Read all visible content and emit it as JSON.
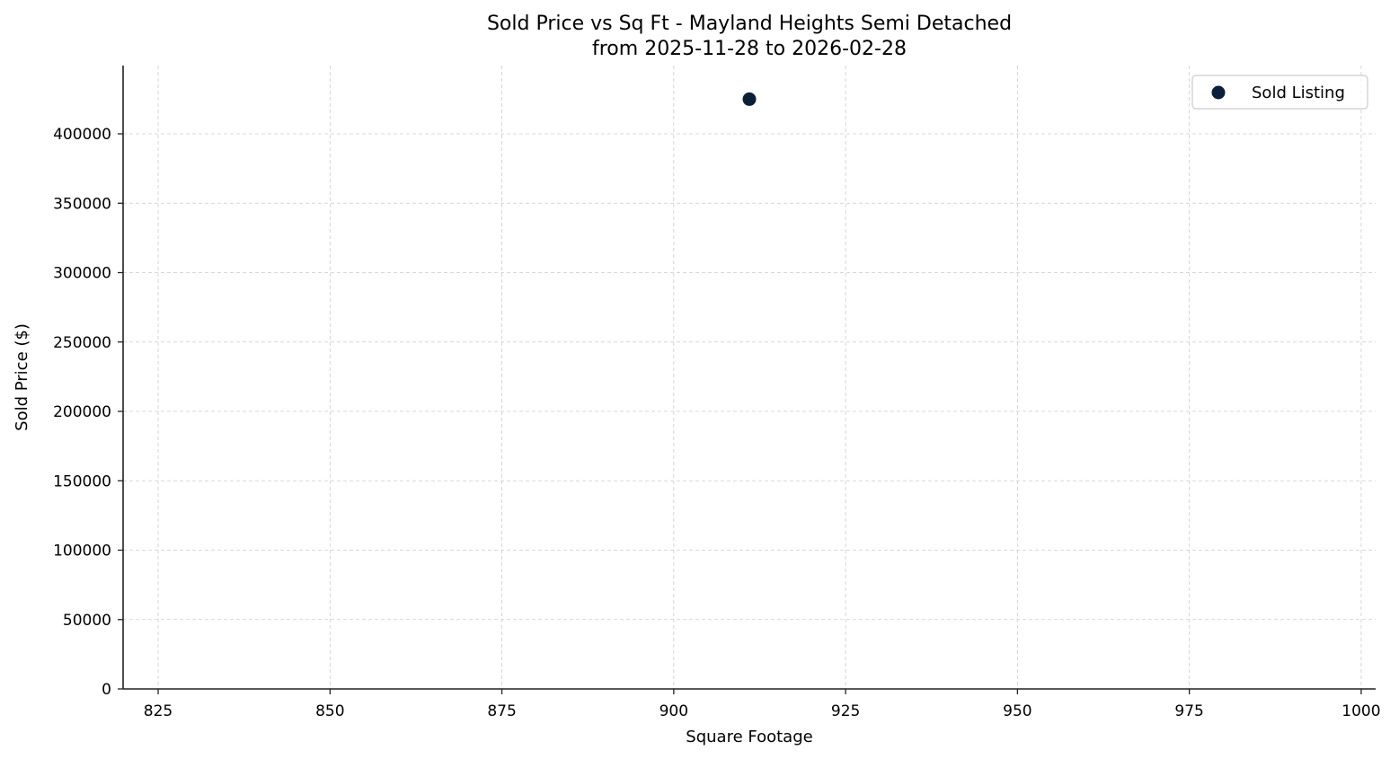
{
  "chart_data": {
    "type": "scatter",
    "title": "Sold Price vs Sq Ft - Mayland Heights Semi Detached",
    "subtitle": "from 2025-11-28 to 2026-02-28",
    "xlabel": "Square Footage",
    "ylabel": "Sold Price ($)",
    "xlim": [
      819.9,
      1002.1
    ],
    "ylim": [
      0,
      449200
    ],
    "xticks": [
      825,
      850,
      875,
      900,
      925,
      950,
      975,
      1000
    ],
    "yticks": [
      0,
      50000,
      100000,
      150000,
      200000,
      250000,
      300000,
      350000,
      400000
    ],
    "grid": true,
    "legend_position": "upper right",
    "series": [
      {
        "name": "Sold Listing",
        "color": "#0b1f3a",
        "points": [
          {
            "x": 911,
            "y": 425000
          }
        ]
      }
    ]
  },
  "colors": {
    "axis": "#222222",
    "grid": "#cccccc",
    "marker": "#0b1f3a",
    "legend_border": "#cccccc"
  }
}
